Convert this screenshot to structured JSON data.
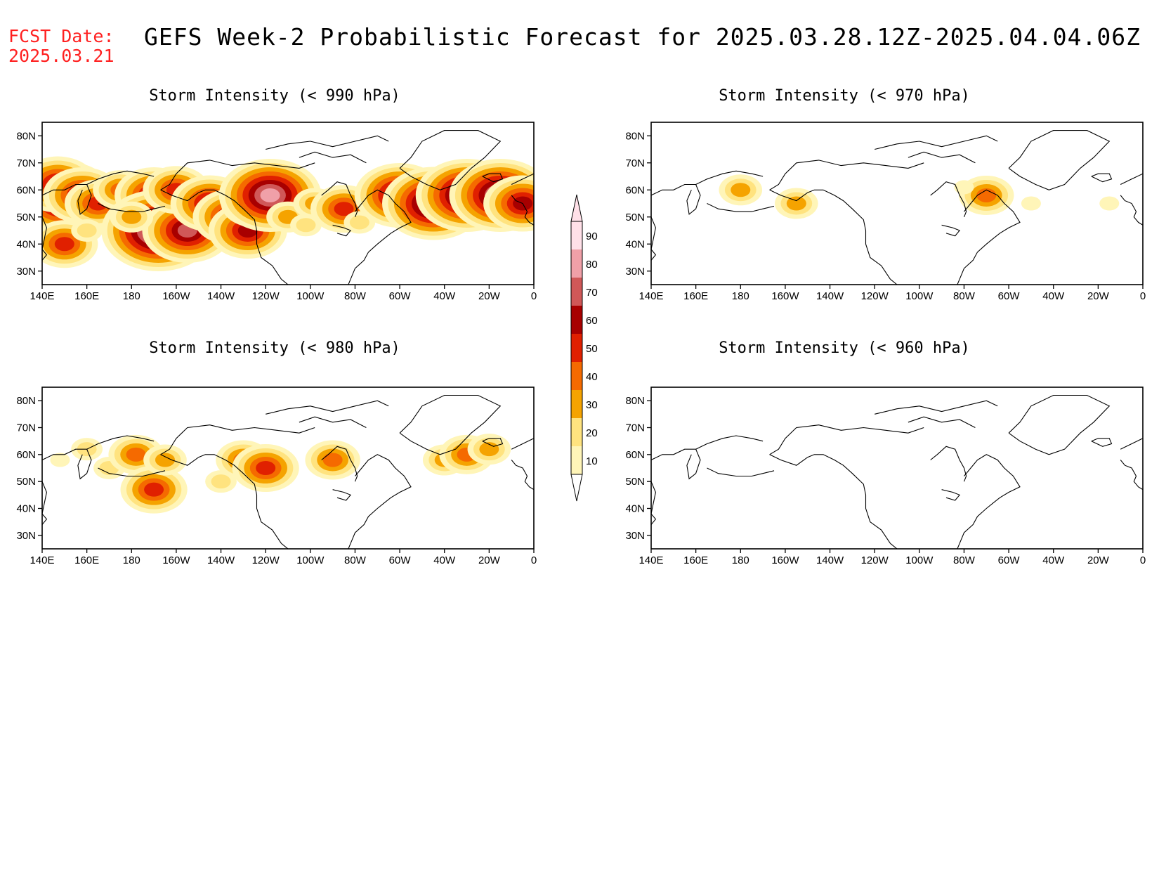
{
  "header": {
    "fcst_label": "FCST Date:",
    "fcst_date": "2025.03.21",
    "title": "GEFS Week-2 Probabilistic Forecast for 2025.03.28.12Z-2025.04.04.06Z"
  },
  "panels": [
    {
      "id": "p990",
      "title": "Storm Intensity (< 990 hPa)"
    },
    {
      "id": "p970",
      "title": "Storm Intensity (< 970 hPa)"
    },
    {
      "id": "p980",
      "title": "Storm Intensity (< 980 hPa)"
    },
    {
      "id": "p960",
      "title": "Storm Intensity (< 960 hPa)"
    }
  ],
  "axes": {
    "lat_ticks": [
      "80N",
      "70N",
      "60N",
      "50N",
      "40N",
      "30N"
    ],
    "lat_values": [
      80,
      70,
      60,
      50,
      40,
      30
    ],
    "lon_ticks": [
      "140E",
      "160E",
      "180",
      "160W",
      "140W",
      "120W",
      "100W",
      "80W",
      "60W",
      "40W",
      "20W",
      "0"
    ],
    "lon_values": [
      140,
      160,
      180,
      200,
      220,
      240,
      260,
      280,
      300,
      320,
      340,
      360
    ],
    "lon_range": [
      140,
      360
    ],
    "lat_range": [
      25,
      85
    ]
  },
  "colorbar": {
    "levels": [
      "10",
      "20",
      "30",
      "40",
      "50",
      "60",
      "70",
      "80",
      "90"
    ],
    "colors": [
      "#fff5b8",
      "#ffe37f",
      "#f5a300",
      "#f56a00",
      "#e02000",
      "#a80000",
      "#d05858",
      "#f0a0a8",
      "#ffe0e8"
    ]
  },
  "fields": {
    "p990": [
      {
        "lon": 150,
        "lat": 57,
        "v": 80
      },
      {
        "lon": 147,
        "lat": 62,
        "v": 60
      },
      {
        "lon": 158,
        "lat": 58,
        "v": 60
      },
      {
        "lon": 165,
        "lat": 55,
        "v": 50
      },
      {
        "lon": 175,
        "lat": 60,
        "v": 40
      },
      {
        "lon": 190,
        "lat": 58,
        "v": 60
      },
      {
        "lon": 192,
        "lat": 45,
        "v": 90
      },
      {
        "lon": 205,
        "lat": 45,
        "v": 70
      },
      {
        "lon": 200,
        "lat": 60,
        "v": 50
      },
      {
        "lon": 215,
        "lat": 55,
        "v": 60
      },
      {
        "lon": 225,
        "lat": 50,
        "v": 65
      },
      {
        "lon": 232,
        "lat": 45,
        "v": 60
      },
      {
        "lon": 235,
        "lat": 55,
        "v": 50
      },
      {
        "lon": 242,
        "lat": 58,
        "v": 80
      },
      {
        "lon": 250,
        "lat": 50,
        "v": 30
      },
      {
        "lon": 262,
        "lat": 55,
        "v": 30
      },
      {
        "lon": 275,
        "lat": 53,
        "v": 50
      },
      {
        "lon": 300,
        "lat": 58,
        "v": 70
      },
      {
        "lon": 315,
        "lat": 55,
        "v": 80
      },
      {
        "lon": 330,
        "lat": 58,
        "v": 85
      },
      {
        "lon": 345,
        "lat": 58,
        "v": 80
      },
      {
        "lon": 355,
        "lat": 55,
        "v": 60
      },
      {
        "lon": 150,
        "lat": 40,
        "v": 50
      },
      {
        "lon": 180,
        "lat": 50,
        "v": 30
      },
      {
        "lon": 160,
        "lat": 45,
        "v": 25
      },
      {
        "lon": 282,
        "lat": 48,
        "v": 20
      },
      {
        "lon": 258,
        "lat": 47,
        "v": 20
      }
    ],
    "p970": [
      {
        "lon": 180,
        "lat": 60,
        "v": 30
      },
      {
        "lon": 205,
        "lat": 55,
        "v": 30
      },
      {
        "lon": 290,
        "lat": 58,
        "v": 40
      },
      {
        "lon": 310,
        "lat": 55,
        "v": 15
      },
      {
        "lon": 345,
        "lat": 55,
        "v": 15
      },
      {
        "lon": 280,
        "lat": 61,
        "v": 15
      }
    ],
    "p980": [
      {
        "lon": 160,
        "lat": 62,
        "v": 25
      },
      {
        "lon": 170,
        "lat": 55,
        "v": 20
      },
      {
        "lon": 182,
        "lat": 60,
        "v": 45
      },
      {
        "lon": 190,
        "lat": 47,
        "v": 55
      },
      {
        "lon": 195,
        "lat": 58,
        "v": 30
      },
      {
        "lon": 220,
        "lat": 50,
        "v": 20
      },
      {
        "lon": 230,
        "lat": 58,
        "v": 40
      },
      {
        "lon": 240,
        "lat": 55,
        "v": 50
      },
      {
        "lon": 270,
        "lat": 58,
        "v": 40
      },
      {
        "lon": 320,
        "lat": 58,
        "v": 35
      },
      {
        "lon": 330,
        "lat": 60,
        "v": 45
      },
      {
        "lon": 340,
        "lat": 62,
        "v": 30
      },
      {
        "lon": 148,
        "lat": 58,
        "v": 15
      }
    ],
    "p960": []
  }
}
